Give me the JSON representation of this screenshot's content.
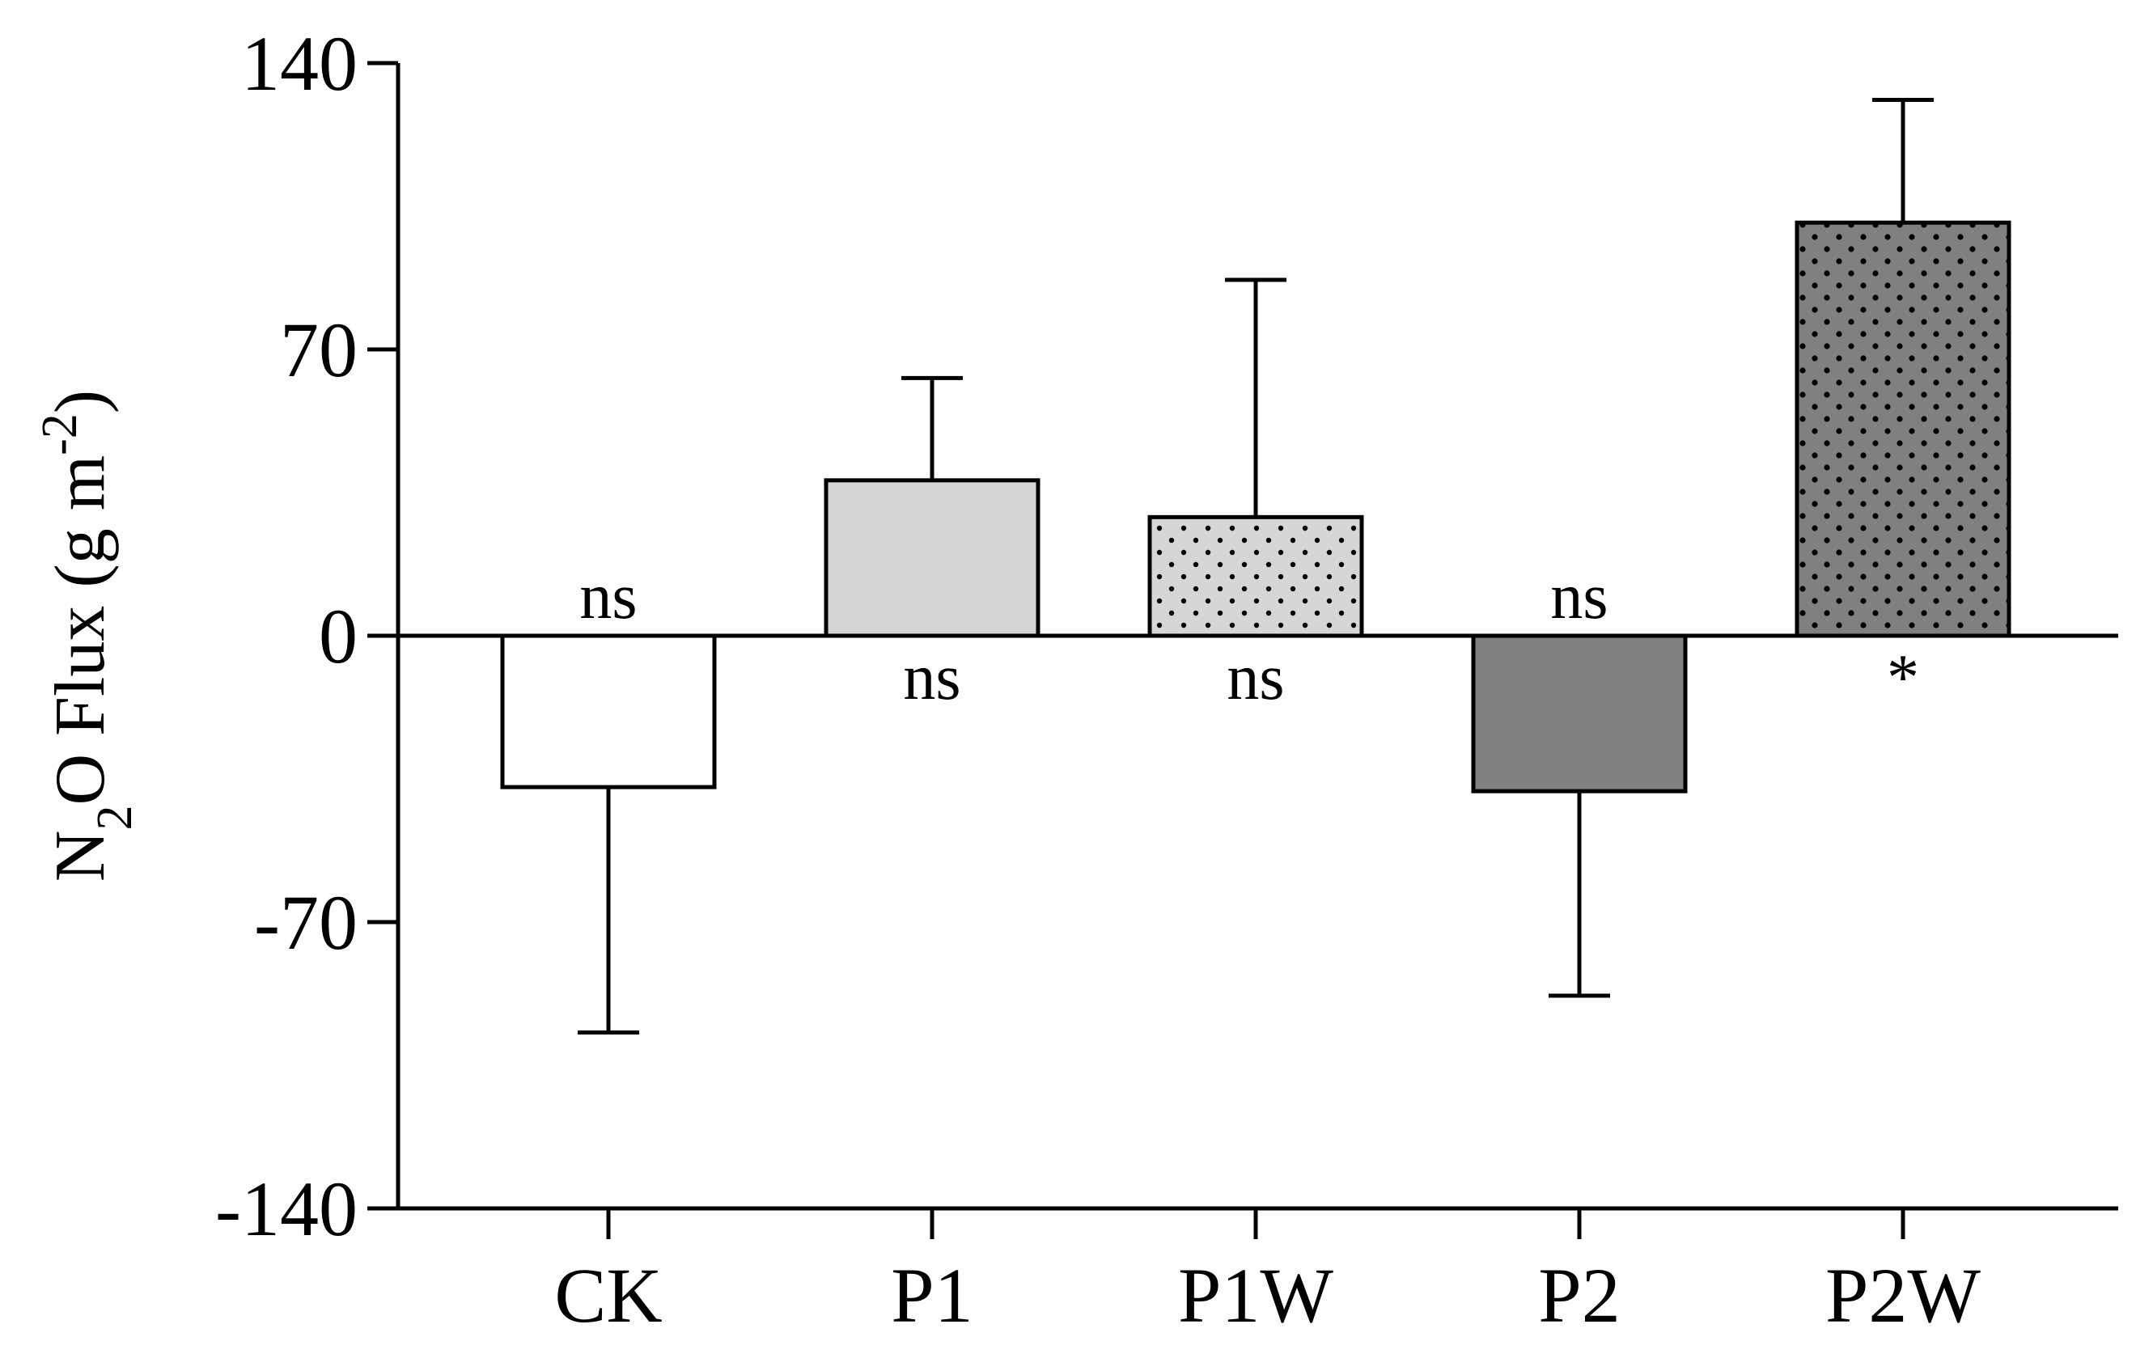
{
  "chart_data": {
    "type": "bar",
    "title": "",
    "xlabel": "",
    "ylabel": {
      "parts": [
        {
          "text": "N",
          "style": "normal"
        },
        {
          "text": "2",
          "style": "sub"
        },
        {
          "text": "O Flux (g m",
          "style": "normal"
        },
        {
          "text": "-2",
          "style": "sup"
        },
        {
          "text": ")",
          "style": "normal"
        }
      ]
    },
    "ylim": [
      -140,
      140
    ],
    "yticks": [
      -140,
      -70,
      0,
      70,
      140
    ],
    "ytick_labels": [
      "-140",
      "-70",
      "0",
      "70",
      "140"
    ],
    "categories": [
      "CK",
      "P1",
      "P1W",
      "P2",
      "P2W"
    ],
    "values": [
      -37,
      38,
      29,
      -38,
      101
    ],
    "error": [
      60,
      25,
      58,
      50,
      30
    ],
    "annotations": [
      "ns",
      "ns",
      "ns",
      "ns",
      "*"
    ],
    "annotation_side": [
      "above-zero",
      "below-zero",
      "below-zero",
      "above-zero",
      "below-zero"
    ],
    "bar_styles": [
      {
        "fill": "#ffffff",
        "pattern": "none"
      },
      {
        "fill": "#d6d6d6",
        "pattern": "none"
      },
      {
        "fill": "#d6d6d6",
        "pattern": "dots"
      },
      {
        "fill": "#808080",
        "pattern": "none"
      },
      {
        "fill": "#808080",
        "pattern": "dots"
      }
    ],
    "grid": false,
    "legend": "none"
  }
}
